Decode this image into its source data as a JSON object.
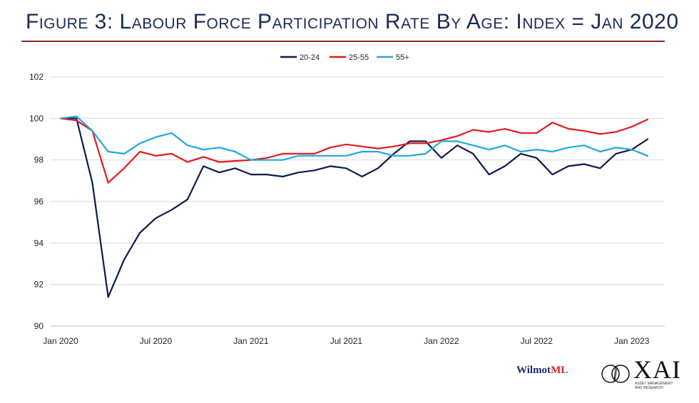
{
  "title": "Figure 3: Labour Force Participation Rate By Age: Index = Jan 2020",
  "brand": {
    "wilmot_prefix": "Wilmot",
    "wilmot_suffix": "ML",
    "xai": "XAI",
    "xai_sub": "ASSET MANAGEMENT AND RESEARCH"
  },
  "colors": {
    "title": "#1a2a55",
    "rule": "#8b2b22",
    "series_20_24": "#0d1b4b",
    "series_25_55": "#e31a1c",
    "series_55plus": "#1fa8e0",
    "grid": "#d9d9d9",
    "axis_text": "#222222"
  },
  "chart_data": {
    "type": "line",
    "title": "",
    "xlabel": "",
    "ylabel": "",
    "ylim": [
      90,
      102
    ],
    "yticks": [
      90,
      92,
      94,
      96,
      98,
      100,
      102
    ],
    "grid": "horizontal",
    "legend_position": "top-center",
    "x": [
      "2020-01",
      "2020-02",
      "2020-03",
      "2020-04",
      "2020-05",
      "2020-06",
      "2020-07",
      "2020-08",
      "2020-09",
      "2020-10",
      "2020-11",
      "2020-12",
      "2021-01",
      "2021-02",
      "2021-03",
      "2021-04",
      "2021-05",
      "2021-06",
      "2021-07",
      "2021-08",
      "2021-09",
      "2021-10",
      "2021-11",
      "2021-12",
      "2022-01",
      "2022-02",
      "2022-03",
      "2022-04",
      "2022-05",
      "2022-06",
      "2022-07",
      "2022-08",
      "2022-09",
      "2022-10",
      "2022-11",
      "2022-12",
      "2023-01",
      "2023-02"
    ],
    "xticks": [
      {
        "label": "Jan 2020",
        "at": "2020-01"
      },
      {
        "label": "Jul 2020",
        "at": "2020-07"
      },
      {
        "label": "Jan 2021",
        "at": "2021-01"
      },
      {
        "label": "Jul 2021",
        "at": "2021-07"
      },
      {
        "label": "Jan 2022",
        "at": "2022-01"
      },
      {
        "label": "Jul 2022",
        "at": "2022-07"
      },
      {
        "label": "Jan 2023",
        "at": "2023-01"
      }
    ],
    "series": [
      {
        "name": "20-24",
        "color": "#0d1b4b",
        "values": [
          100,
          100,
          96.9,
          91.4,
          93.2,
          94.5,
          95.2,
          95.6,
          96.1,
          97.7,
          97.4,
          97.6,
          97.3,
          97.3,
          97.2,
          97.4,
          97.5,
          97.7,
          97.6,
          97.2,
          97.6,
          98.3,
          98.9,
          98.9,
          98.1,
          98.7,
          98.3,
          97.3,
          97.7,
          98.3,
          98.1,
          97.3,
          97.7,
          97.8,
          97.6,
          98.3,
          98.5,
          99.0
        ]
      },
      {
        "name": "25-55",
        "color": "#e31a1c",
        "values": [
          100,
          99.9,
          99.4,
          96.9,
          97.6,
          98.4,
          98.2,
          98.3,
          97.9,
          98.15,
          97.9,
          97.95,
          98.0,
          98.1,
          98.3,
          98.3,
          98.3,
          98.6,
          98.75,
          98.65,
          98.55,
          98.65,
          98.8,
          98.8,
          98.95,
          99.15,
          99.45,
          99.35,
          99.5,
          99.3,
          99.3,
          99.8,
          99.5,
          99.4,
          99.25,
          99.35,
          99.6,
          99.95
        ]
      },
      {
        "name": "55+",
        "color": "#1fa8e0",
        "values": [
          100,
          100.1,
          99.4,
          98.4,
          98.3,
          98.8,
          99.1,
          99.3,
          98.7,
          98.5,
          98.6,
          98.4,
          98.0,
          98.0,
          98.0,
          98.2,
          98.2,
          98.2,
          98.2,
          98.4,
          98.4,
          98.2,
          98.2,
          98.3,
          98.9,
          98.9,
          98.7,
          98.5,
          98.7,
          98.4,
          98.5,
          98.4,
          98.6,
          98.7,
          98.4,
          98.6,
          98.5,
          98.2
        ]
      }
    ]
  }
}
